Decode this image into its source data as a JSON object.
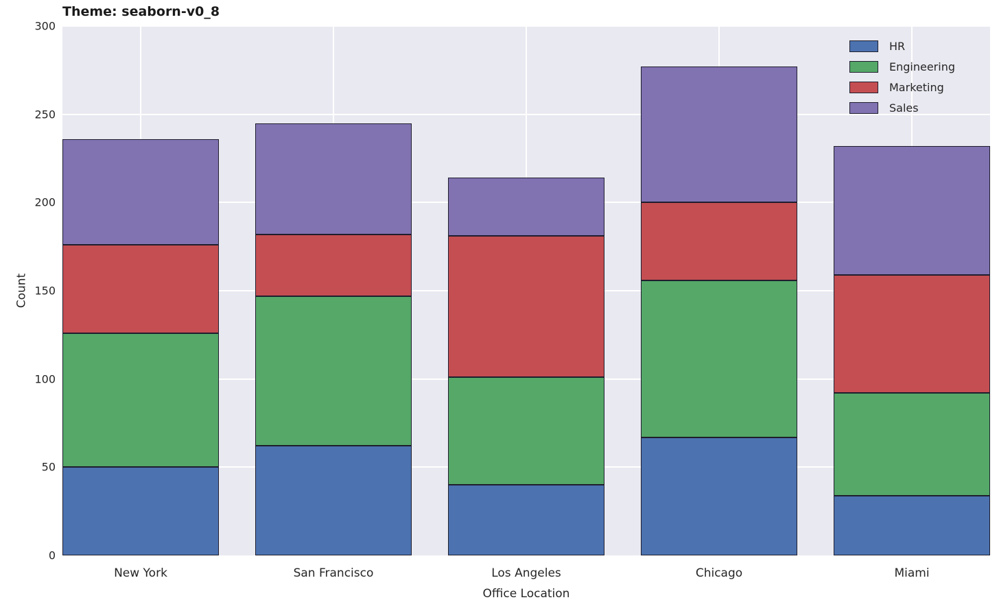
{
  "title": "Theme: seaborn-v0_8",
  "chart_data": {
    "type": "bar",
    "stacked": true,
    "title": "Theme: seaborn-v0_8",
    "xlabel": "Office Location",
    "ylabel": "Count",
    "categories": [
      "New York",
      "San Francisco",
      "Los Angeles",
      "Chicago",
      "Miami"
    ],
    "series": [
      {
        "name": "HR",
        "color": "#4C72B0",
        "values": [
          50,
          62,
          40,
          67,
          34
        ]
      },
      {
        "name": "Engineering",
        "color": "#55A868",
        "values": [
          76,
          85,
          61,
          89,
          58
        ]
      },
      {
        "name": "Marketing",
        "color": "#C44E52",
        "values": [
          50,
          35,
          80,
          44,
          67
        ]
      },
      {
        "name": "Sales",
        "color": "#8172B2",
        "values": [
          60,
          63,
          33,
          77,
          73
        ]
      }
    ],
    "stack_totals": [
      236,
      245,
      214,
      277,
      232
    ],
    "ylim": [
      0,
      300
    ],
    "yticks": [
      0,
      50,
      100,
      150,
      200,
      250,
      300
    ],
    "grid": true,
    "legend_position": "upper right",
    "plot_bg_color": "#E9E9F1",
    "grid_color": "#FFFFFF",
    "bar_edge_color": "#1e1e2d"
  }
}
